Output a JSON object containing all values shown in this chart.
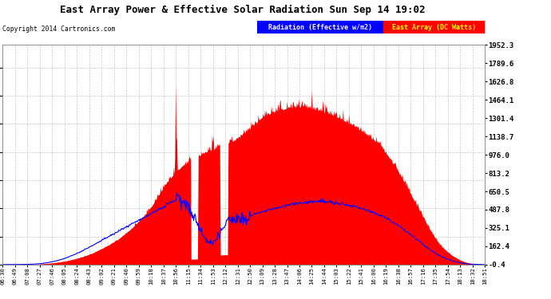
{
  "title": "East Array Power & Effective Solar Radiation Sun Sep 14 19:02",
  "copyright": "Copyright 2014 Cartronics.com",
  "legend_radiation": "Radiation (Effective w/m2)",
  "legend_east": "East Array (DC Watts)",
  "ylabel_right_values": [
    -0.4,
    162.4,
    325.1,
    487.8,
    650.5,
    813.2,
    976.0,
    1138.7,
    1301.4,
    1464.1,
    1626.8,
    1789.6,
    1952.3
  ],
  "ymin": -0.4,
  "ymax": 1952.3,
  "background_color": "#FFFFFF",
  "plot_bg_color": "#FFFFFF",
  "grid_color": "#C8C8C8",
  "x_tick_labels": [
    "06:30",
    "06:49",
    "07:08",
    "07:27",
    "07:46",
    "08:05",
    "08:24",
    "08:43",
    "09:02",
    "09:21",
    "09:40",
    "09:59",
    "10:18",
    "10:37",
    "10:56",
    "11:15",
    "11:34",
    "11:53",
    "12:12",
    "12:31",
    "12:50",
    "13:09",
    "13:28",
    "13:47",
    "14:06",
    "14:25",
    "14:44",
    "15:03",
    "15:22",
    "15:41",
    "16:00",
    "16:19",
    "16:38",
    "16:57",
    "17:16",
    "17:35",
    "17:54",
    "18:13",
    "18:32",
    "18:51"
  ]
}
